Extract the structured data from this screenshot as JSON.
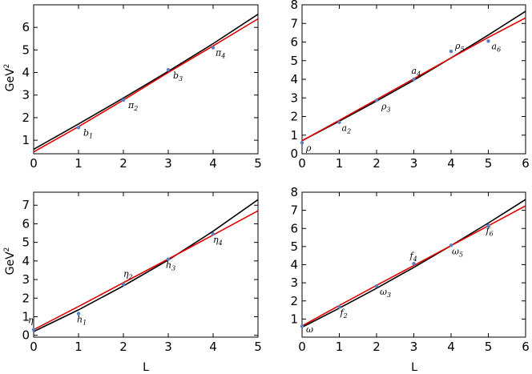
{
  "figure": {
    "xlabel": "L",
    "ylabel_base": "GeV",
    "ylabel_exp": "2"
  },
  "chart_data": [
    {
      "type": "scatter",
      "xlim": [
        0,
        5
      ],
      "ylim": [
        0.4,
        7
      ],
      "xticks": [
        0,
        1,
        2,
        3,
        4,
        5
      ],
      "yticks": [
        1,
        2,
        3,
        4,
        5,
        6
      ],
      "points": [
        {
          "x": 1,
          "y": 1.56,
          "label": "b",
          "sub": "1"
        },
        {
          "x": 2,
          "y": 2.78,
          "label": "π",
          "sub": "2"
        },
        {
          "x": 3,
          "y": 4.12,
          "label": "b",
          "sub": "3"
        },
        {
          "x": 4,
          "y": 5.1,
          "label": "π",
          "sub": "4"
        }
      ],
      "curves": [
        {
          "color": "#000000",
          "x": [
            0,
            1,
            2,
            3,
            4,
            5
          ],
          "y": [
            0.6,
            1.72,
            2.87,
            4.05,
            5.28,
            6.58
          ]
        },
        {
          "color": "#e00000",
          "x": [
            0,
            1,
            2,
            3,
            4,
            5
          ],
          "y": [
            0.48,
            1.6,
            2.78,
            4.0,
            5.18,
            6.38
          ]
        }
      ]
    },
    {
      "type": "scatter",
      "xlim": [
        0,
        6
      ],
      "ylim": [
        0,
        8
      ],
      "xticks": [
        0,
        1,
        2,
        3,
        4,
        5,
        6
      ],
      "yticks": [
        0,
        1,
        2,
        3,
        4,
        5,
        6,
        7,
        8
      ],
      "points": [
        {
          "x": 0,
          "y": 0.59,
          "label": "ρ",
          "sub": ""
        },
        {
          "x": 1,
          "y": 1.69,
          "label": "a",
          "sub": "2"
        },
        {
          "x": 2,
          "y": 2.87,
          "label": "ρ",
          "sub": "3"
        },
        {
          "x": 3,
          "y": 4.0,
          "label": "a",
          "sub": "4"
        },
        {
          "x": 4,
          "y": 5.5,
          "label": "ρ",
          "sub": "5"
        },
        {
          "x": 5,
          "y": 6.05,
          "label": "a",
          "sub": "6"
        }
      ],
      "curves": [
        {
          "color": "#000000",
          "x": [
            0,
            1,
            2,
            3,
            4,
            5,
            6
          ],
          "y": [
            0.7,
            1.75,
            2.83,
            3.95,
            5.15,
            6.38,
            7.65
          ]
        },
        {
          "color": "#e00000",
          "x": [
            0,
            1,
            2,
            3,
            4,
            5,
            6
          ],
          "y": [
            0.7,
            1.8,
            2.91,
            4.03,
            5.15,
            6.25,
            7.3
          ]
        }
      ]
    },
    {
      "type": "scatter",
      "xlim": [
        0,
        5
      ],
      "ylim": [
        -0.1,
        7.7
      ],
      "xticks": [
        0,
        1,
        2,
        3,
        4,
        5
      ],
      "yticks": [
        0,
        1,
        2,
        3,
        4,
        5,
        6,
        7
      ],
      "points": [
        {
          "x": 0,
          "y": 0.3,
          "label": "η",
          "sub": ""
        },
        {
          "x": 1,
          "y": 1.17,
          "label": "h",
          "sub": "1"
        },
        {
          "x": 2,
          "y": 2.73,
          "label": "η",
          "sub": "2"
        },
        {
          "x": 3,
          "y": 4.1,
          "label": "h",
          "sub": "3"
        },
        {
          "x": 4,
          "y": 5.45,
          "label": "η",
          "sub": "4"
        }
      ],
      "curves": [
        {
          "color": "#000000",
          "x": [
            0,
            1,
            2,
            3,
            4,
            5
          ],
          "y": [
            0.2,
            1.37,
            2.66,
            4.05,
            5.6,
            7.3
          ]
        },
        {
          "color": "#e00000",
          "x": [
            0,
            1,
            2,
            3,
            4,
            5
          ],
          "y": [
            0.3,
            1.55,
            2.83,
            4.1,
            5.4,
            6.7
          ]
        }
      ]
    },
    {
      "type": "scatter",
      "xlim": [
        0,
        6
      ],
      "ylim": [
        0,
        8
      ],
      "xticks": [
        0,
        1,
        2,
        3,
        4,
        5,
        6
      ],
      "yticks": [
        1,
        2,
        3,
        4,
        5,
        6,
        7,
        8
      ],
      "points": [
        {
          "x": 0,
          "y": 0.61,
          "label": "ω",
          "sub": ""
        },
        {
          "x": 1,
          "y": 1.67,
          "label": "f",
          "sub": "2"
        },
        {
          "x": 2,
          "y": 2.82,
          "label": "ω",
          "sub": "3"
        },
        {
          "x": 3,
          "y": 4.06,
          "label": "f",
          "sub": "4"
        },
        {
          "x": 4,
          "y": 5.07,
          "label": "ω",
          "sub": "5"
        },
        {
          "x": 5,
          "y": 6.16,
          "label": "f",
          "sub": "6"
        }
      ],
      "curves": [
        {
          "color": "#000000",
          "x": [
            0,
            1,
            2,
            3,
            4,
            5,
            6
          ],
          "y": [
            0.55,
            1.6,
            2.7,
            3.85,
            5.05,
            6.3,
            7.6
          ]
        },
        {
          "color": "#e00000",
          "x": [
            0,
            1,
            2,
            3,
            4,
            5,
            6
          ],
          "y": [
            0.62,
            1.75,
            2.86,
            3.95,
            5.05,
            6.15,
            7.25
          ]
        }
      ]
    }
  ]
}
